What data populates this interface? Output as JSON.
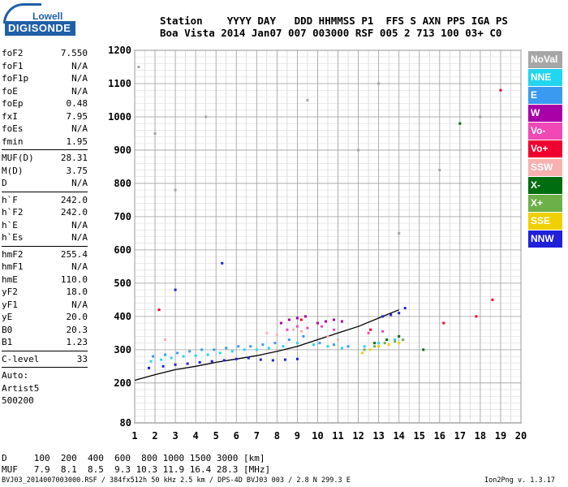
{
  "logo": {
    "top": "Lowell",
    "bottom": "DIGISONDE"
  },
  "header": {
    "line1": "Station    YYYY DAY   DDD HHMMSS P1  FFS S AXN PPS IGA PS",
    "line2": "Boa Vista 2014 Jan07 007 003000 RSF 005 2 713 100 03+ C0"
  },
  "params": [
    [
      [
        "foF2",
        "7.550"
      ],
      [
        "foF1",
        "N/A"
      ],
      [
        "foF1p",
        "N/A"
      ],
      [
        "foE",
        "N/A"
      ],
      [
        "foEp",
        "0.48"
      ],
      [
        "fxI",
        "7.95"
      ],
      [
        "foEs",
        "N/A"
      ],
      [
        "fmin",
        "1.95"
      ]
    ],
    [
      [
        "MUF(D)",
        "28.31"
      ],
      [
        "M(D)",
        "3.75"
      ],
      [
        "D",
        "N/A"
      ]
    ],
    [
      [
        "h`F",
        "242.0"
      ],
      [
        "h`F2",
        "242.0"
      ],
      [
        "h`E",
        "N/A"
      ],
      [
        "h`Es",
        "N/A"
      ]
    ],
    [
      [
        "hmF2",
        "255.4"
      ],
      [
        "hmF1",
        "N/A"
      ],
      [
        "hmE",
        "110.0"
      ],
      [
        "yF2",
        "18.0"
      ],
      [
        "yF1",
        "N/A"
      ],
      [
        "yE",
        "20.0"
      ],
      [
        "B0",
        "20.3"
      ],
      [
        "B1",
        "1.23"
      ]
    ],
    [
      [
        "C-level",
        "33"
      ]
    ]
  ],
  "auto": {
    "label": "Auto:",
    "artist": "Artist5",
    "code": "500200"
  },
  "legend": [
    {
      "label": "NoVal",
      "color": "#a6a6a6"
    },
    {
      "label": "NNE",
      "color": "#22d6f0"
    },
    {
      "label": "E",
      "color": "#3a9af0"
    },
    {
      "label": "W",
      "color": "#a800a8"
    },
    {
      "label": "Vo-",
      "color": "#f048b4"
    },
    {
      "label": "Vo+",
      "color": "#f00030"
    },
    {
      "label": "SSW",
      "color": "#f8b0b0"
    },
    {
      "label": "X-",
      "color": "#006e10"
    },
    {
      "label": "X+",
      "color": "#6cb048"
    },
    {
      "label": "SSE",
      "color": "#f0d000"
    },
    {
      "label": "NNW",
      "color": "#2020d8"
    }
  ],
  "footer": {
    "d_line": "D     100  200  400  600  800 1000 1500 3000 [km]",
    "muf_line": "MUF   7.9  8.1  8.5  9.3 10.3 11.9 16.4 28.3 [MHz]",
    "file_line": "BVJ03_2014007003000.RSF / 384fx512h 50 kHz 2.5 km / DPS-4D BVJ03 003 / 2.8 N 299.3 E",
    "version": "Ion2Png v. 1.3.17"
  },
  "chart_data": {
    "type": "scatter",
    "title": "",
    "xlabel": "",
    "ylabel": "",
    "xlim": [
      1,
      20
    ],
    "ylim": [
      80,
      1200
    ],
    "x_ticks": [
      1,
      2,
      3,
      4,
      5,
      6,
      7,
      8,
      9,
      10,
      11,
      12,
      13,
      14,
      15,
      16,
      17,
      18,
      19,
      20
    ],
    "y_ticks": [
      80,
      200,
      300,
      400,
      500,
      600,
      700,
      800,
      900,
      1000,
      1100,
      1200
    ],
    "grid": true,
    "legend_position": "right",
    "ionogram_trace": {
      "frequency_mhz": [
        1.0,
        2,
        3,
        4,
        5,
        6,
        7,
        8,
        9,
        10,
        11,
        12,
        13,
        14
      ],
      "virtual_height_km": [
        208,
        225,
        240,
        250,
        262,
        272,
        282,
        295,
        310,
        330,
        350,
        370,
        395,
        420
      ]
    },
    "series": [
      {
        "name": "NNE",
        "color": "#22d6f0",
        "x": [
          1.8,
          2.3,
          2.8,
          3.4,
          4.0,
          4.6,
          5.2,
          5.8,
          6.4,
          7.0,
          7.6,
          8.3,
          9.0,
          9.8,
          10.5,
          11.2,
          12.3,
          13.0,
          13.8
        ],
        "y": [
          265,
          270,
          275,
          280,
          282,
          285,
          290,
          295,
          300,
          300,
          305,
          310,
          320,
          315,
          310,
          305,
          310,
          320,
          330
        ]
      },
      {
        "name": "E",
        "color": "#3a9af0",
        "x": [
          1.9,
          2.5,
          3.1,
          3.7,
          4.3,
          4.9,
          5.5,
          6.1,
          6.7,
          7.3,
          7.9,
          8.6,
          9.3,
          10.1,
          10.8,
          11.5
        ],
        "y": [
          280,
          285,
          290,
          295,
          300,
          300,
          305,
          310,
          310,
          315,
          320,
          330,
          340,
          320,
          315,
          310
        ]
      },
      {
        "name": "W",
        "color": "#a800a8",
        "x": [
          8.2,
          8.6,
          9.0,
          9.4,
          10.0,
          10.4,
          10.8,
          11.2
        ],
        "y": [
          380,
          390,
          395,
          400,
          380,
          385,
          390,
          385
        ]
      },
      {
        "name": "Vo-",
        "color": "#f048b4",
        "x": [
          8.5,
          9.0,
          9.5,
          10.2,
          10.8,
          12.5,
          13.2
        ],
        "y": [
          360,
          370,
          365,
          370,
          360,
          350,
          355
        ]
      },
      {
        "name": "Vo+",
        "color": "#f00030",
        "x": [
          2.2,
          9.2,
          12.6,
          16.2,
          17.8,
          18.6,
          19.0
        ],
        "y": [
          420,
          390,
          360,
          380,
          400,
          450,
          1080
        ]
      },
      {
        "name": "SSW",
        "color": "#f8b0b0",
        "x": [
          2.5,
          7.5,
          8.0,
          8.8,
          9.2,
          10.5,
          11.0
        ],
        "y": [
          330,
          350,
          345,
          360,
          355,
          340,
          330
        ]
      },
      {
        "name": "X-",
        "color": "#006e10",
        "x": [
          12.8,
          13.4,
          14.0,
          15.2,
          17.0
        ],
        "y": [
          320,
          330,
          340,
          300,
          980
        ]
      },
      {
        "name": "X+",
        "color": "#6cb048",
        "x": [
          12.3,
          12.8,
          13.3,
          13.8,
          14.2
        ],
        "y": [
          300,
          310,
          320,
          325,
          330
        ]
      },
      {
        "name": "SSE",
        "color": "#f0d000",
        "x": [
          12.2,
          12.6,
          13.0,
          13.5,
          14.0
        ],
        "y": [
          290,
          300,
          310,
          315,
          320
        ]
      },
      {
        "name": "NNW",
        "color": "#2020d8",
        "x": [
          1.7,
          2.4,
          3.0,
          3.6,
          4.2,
          4.8,
          5.4,
          6.0,
          6.6,
          7.2,
          7.8,
          8.4,
          9.0,
          13.2,
          13.6,
          14.0,
          14.3,
          3.0,
          5.3
        ],
        "y": [
          245,
          250,
          255,
          258,
          262,
          265,
          268,
          272,
          275,
          270,
          268,
          270,
          272,
          400,
          405,
          410,
          425,
          480,
          560
        ]
      },
      {
        "name": "NoVal",
        "color": "#a6a6a6",
        "x": [
          1.2,
          2.0,
          3.0,
          4.5,
          9.5,
          12.0,
          13.0,
          14.0,
          16.0,
          18.0
        ],
        "y": [
          1150,
          950,
          780,
          1000,
          1050,
          900,
          1100,
          650,
          840,
          1000
        ]
      }
    ]
  }
}
